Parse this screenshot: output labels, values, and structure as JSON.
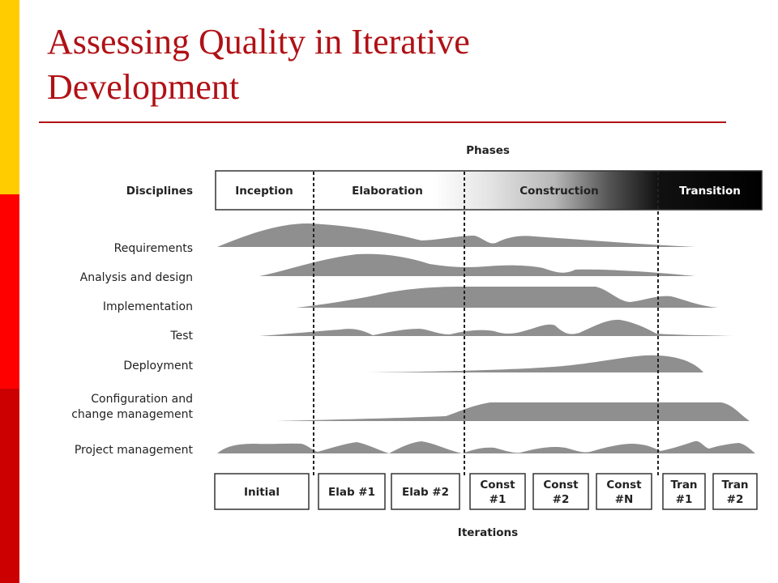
{
  "slide": {
    "title_line1": "Assessing Quality in Iterative",
    "title_line2": "Development",
    "accent_colors": [
      "#FFCC00",
      "#FF0000",
      "#CC0000"
    ],
    "title_color": "#B01116"
  },
  "diagram": {
    "phases_header": "Phases",
    "disciplines_header": "Disciplines",
    "phases": [
      "Inception",
      "Elaboration",
      "Construction",
      "Transition"
    ],
    "disciplines": [
      [
        "Requirements"
      ],
      [
        "Analysis and design"
      ],
      [
        "Implementation"
      ],
      [
        "Test"
      ],
      [
        "Deployment"
      ],
      [
        "Configuration and",
        "change management"
      ],
      [
        "Project management"
      ]
    ],
    "iterations_header": "Iterations",
    "iterations": [
      [
        "Initial"
      ],
      [
        "Elab #1"
      ],
      [
        "Elab #2"
      ],
      [
        "Const",
        "#1"
      ],
      [
        "Const",
        "#2"
      ],
      [
        "Const",
        "#N"
      ],
      [
        "Tran",
        "#1"
      ],
      [
        "Tran",
        "#2"
      ]
    ]
  }
}
